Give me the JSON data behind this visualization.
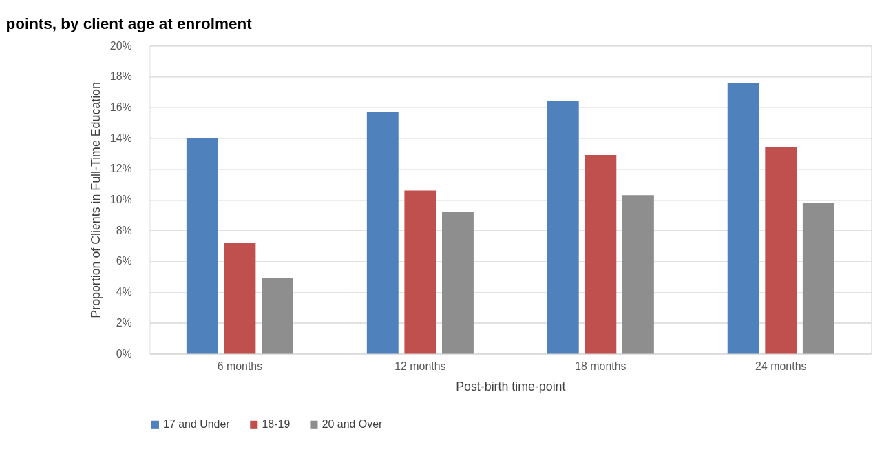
{
  "chart_data": {
    "type": "bar",
    "title": "points, by client age at enrolment",
    "xlabel": "Post-birth time-point",
    "ylabel": "Proportion of Clients in Full-Time Education",
    "categories": [
      "6 months",
      "12 months",
      "18 months",
      "24 months"
    ],
    "series": [
      {
        "name": "17 and Under",
        "color": "#4f81bd",
        "values": [
          14.0,
          15.7,
          16.4,
          17.6
        ]
      },
      {
        "name": "18-19",
        "color": "#c0504d",
        "values": [
          7.2,
          10.6,
          12.9,
          13.4
        ]
      },
      {
        "name": "20 and Over",
        "color": "#8e8e8e",
        "values": [
          4.9,
          9.2,
          10.3,
          9.8
        ]
      }
    ],
    "ylim": [
      0,
      20
    ],
    "yticks": [
      {
        "value": 0,
        "label": "0%"
      },
      {
        "value": 2,
        "label": "2%"
      },
      {
        "value": 4,
        "label": "4%"
      },
      {
        "value": 6,
        "label": "6%"
      },
      {
        "value": 8,
        "label": "8%"
      },
      {
        "value": 10,
        "label": "10%"
      },
      {
        "value": 12,
        "label": "12%"
      },
      {
        "value": 14,
        "label": "14%"
      },
      {
        "value": 16,
        "label": "16%"
      },
      {
        "value": 18,
        "label": "18%"
      },
      {
        "value": 20,
        "label": "20%"
      }
    ],
    "grid": "y",
    "legend": "bottom"
  }
}
